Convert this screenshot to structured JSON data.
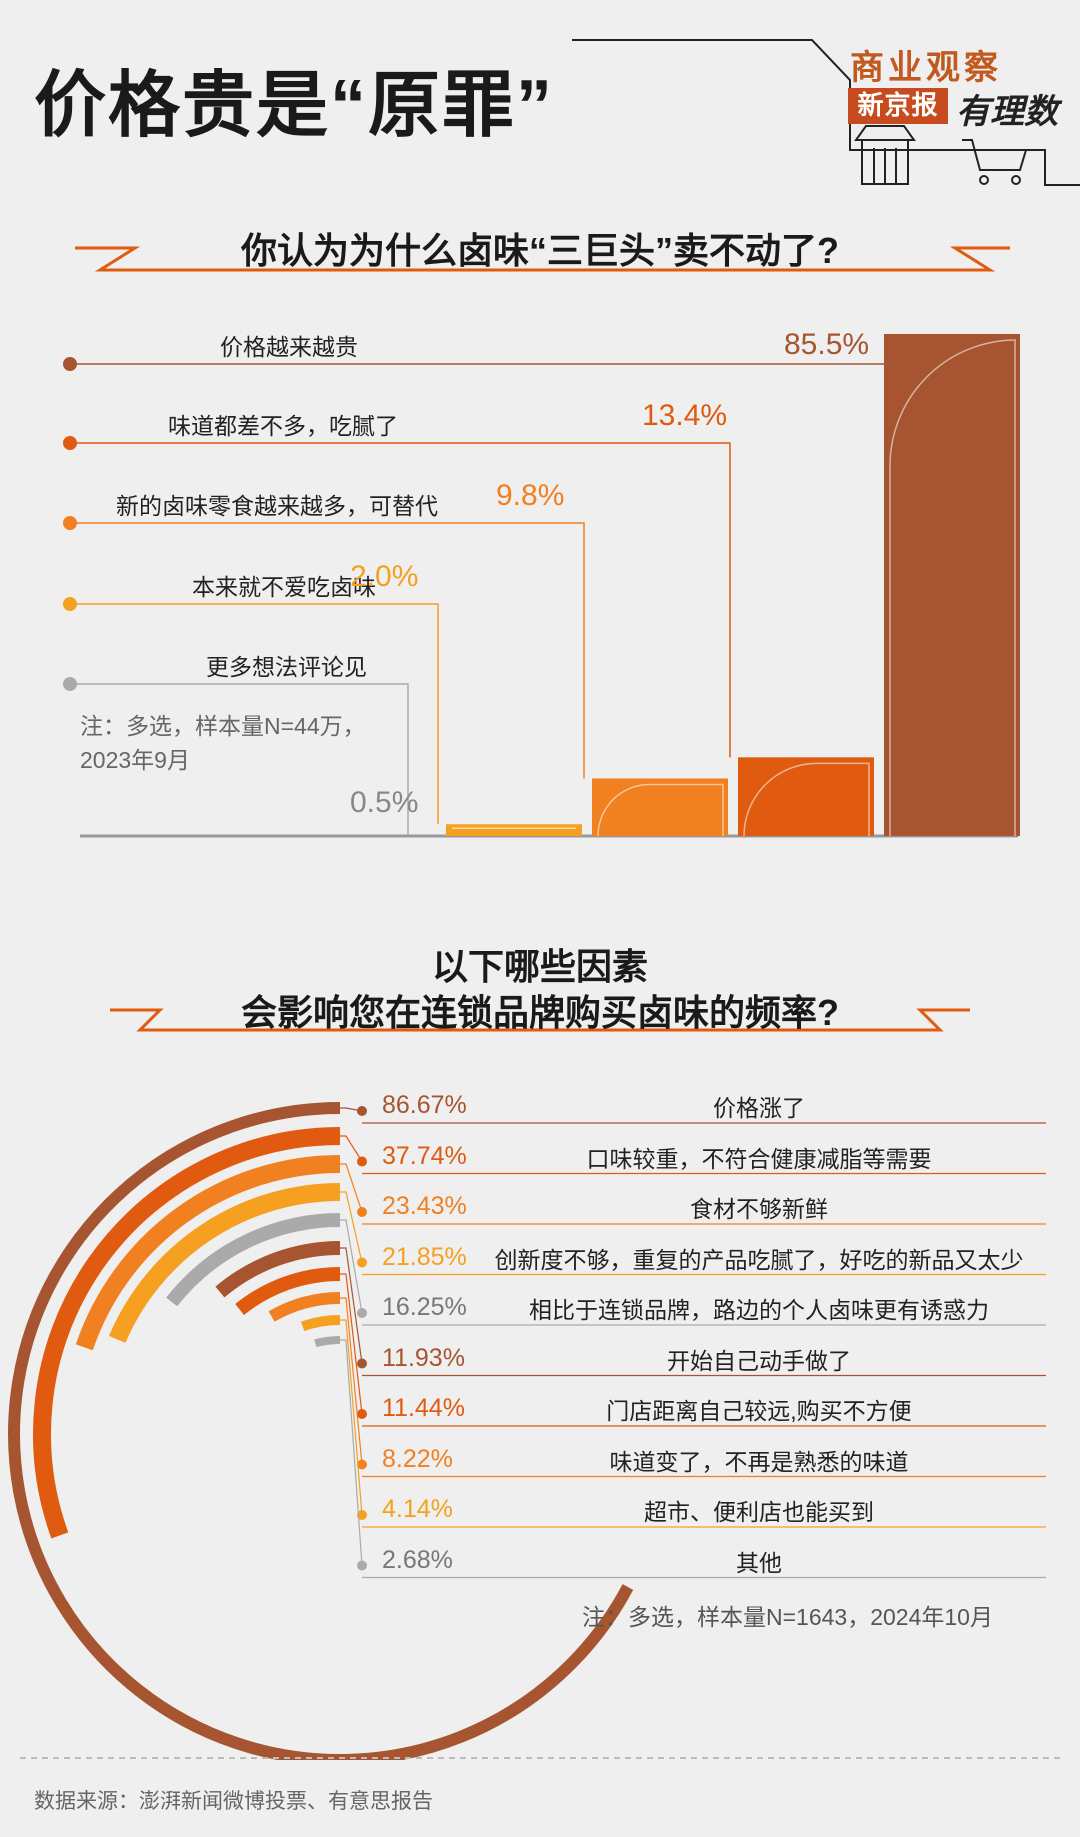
{
  "header": {
    "title": "价格贵是“原罪”",
    "brand_top": "商业观察",
    "brand_badge": "新京报",
    "brand_script": "有理数"
  },
  "chart1": {
    "question": "你认为为什么卤味“三巨头”卖不动了?",
    "note_line1": "注：多选，样本量N=44万，",
    "note_line2": "2023年9月"
  },
  "chart2": {
    "question_line1": "以下哪些因素",
    "question_line2": "会影响您在连锁品牌购买卤味的频率?",
    "note": "注：多选，样本量N=1643，2024年10月"
  },
  "source": "数据来源：澎湃新闻微博投票、有意思报告",
  "colors": {
    "brown": "#a65530",
    "dark_orange": "#e05a10",
    "orange": "#f08020",
    "light_orange": "#f5a020",
    "gray": "#aaaaaa",
    "brand_red": "#c74b1e"
  },
  "chart_data": [
    {
      "type": "bar",
      "title": "你认为为什么卤味“三巨头”卖不动了?",
      "categories": [
        "价格越来越贵",
        "味道都差不多，吃腻了",
        "新的卤味零食越来越多，可替代",
        "本来就不爱吃卤味",
        "更多想法评论见"
      ],
      "values": [
        85.5,
        13.4,
        9.8,
        2.0,
        0.5
      ],
      "value_labels": [
        "85.5%",
        "13.4%",
        "9.8%",
        "2.0%",
        "0.5%"
      ],
      "colors": [
        "#a65530",
        "#e05a10",
        "#f08020",
        "#f5a020",
        "#aaaaaa"
      ],
      "ylim": [
        0,
        85.5
      ]
    },
    {
      "type": "radial-bar",
      "title": "以下哪些因素 会影响您在连锁品牌购买卤味的频率?",
      "categories": [
        "价格涨了",
        "口味较重，不符合健康减脂等需要",
        "食材不够新鲜",
        "创新度不够，重复的产品吃腻了，好吃的新品又太少",
        "相比于连锁品牌，路边的个人卤味更有诱惑力",
        "开始自己动手做了",
        "门店距离自己较远,购买不方便",
        "味道变了，不再是熟悉的味道",
        "超市、便利店也能买到",
        "其他"
      ],
      "values": [
        86.67,
        37.74,
        23.43,
        21.85,
        16.25,
        11.93,
        11.44,
        8.22,
        4.14,
        2.68
      ],
      "value_labels": [
        "86.67%",
        "37.74%",
        "23.43%",
        "21.85%",
        "16.25%",
        "11.93%",
        "11.44%",
        "8.22%",
        "4.14%",
        "2.68%"
      ],
      "colors": [
        "#a65530",
        "#e05a10",
        "#f08020",
        "#f5a020",
        "#aaaaaa",
        "#a65530",
        "#e05a10",
        "#f08020",
        "#f5a020",
        "#aaaaaa"
      ]
    }
  ]
}
